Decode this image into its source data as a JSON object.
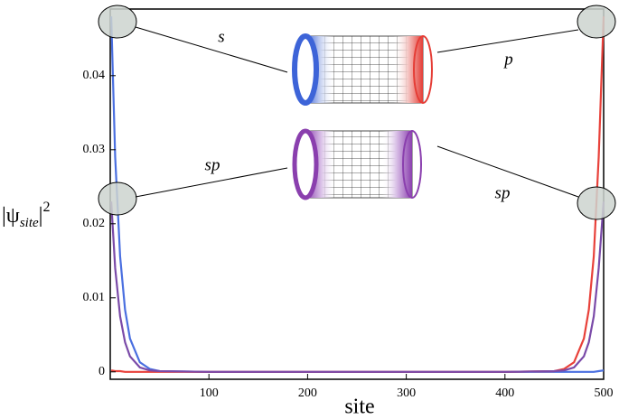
{
  "chart_data": {
    "type": "line",
    "x_label": "site",
    "y_label": {
      "symbol": "|ψ",
      "subscript": "site",
      "close": "|",
      "superscript": "2"
    },
    "x": [
      1,
      5,
      10,
      15,
      20,
      30,
      40,
      50,
      100,
      200,
      300,
      400,
      450,
      460,
      470,
      480,
      485,
      490,
      495,
      500
    ],
    "series": [
      {
        "color": "#4a6fe0",
        "values": [
          0.048,
          0.029,
          0.0156,
          0.0084,
          0.0045,
          0.0013,
          0.0004,
          0.0001,
          0,
          0,
          0,
          0,
          0,
          0,
          0,
          0,
          0,
          0,
          0.0001,
          0.0002
        ]
      },
      {
        "color": "#e8413a",
        "values": [
          0.0002,
          0.0001,
          0.0001,
          0,
          0,
          0,
          0,
          0,
          0,
          0,
          0,
          0,
          0.0001,
          0.0004,
          0.0013,
          0.0045,
          0.0084,
          0.0156,
          0.029,
          0.048
        ]
      },
      {
        "color": "#7a4aa8",
        "values": [
          0.023,
          0.014,
          0.0075,
          0.004,
          0.0021,
          0.0006,
          0.0002,
          0.0001,
          0,
          0,
          0,
          0,
          0.0001,
          0.0002,
          0.0006,
          0.0021,
          0.004,
          0.0075,
          0.014,
          0.023
        ]
      }
    ],
    "xlim": [
      0,
      500
    ],
    "ylim": [
      -0.001,
      0.049
    ],
    "xticks": [
      100,
      200,
      300,
      400,
      500
    ],
    "yticks": [
      0,
      0.01,
      0.02,
      0.03,
      0.04
    ],
    "annotations": [
      "s",
      "p",
      "sp",
      "sp"
    ]
  }
}
